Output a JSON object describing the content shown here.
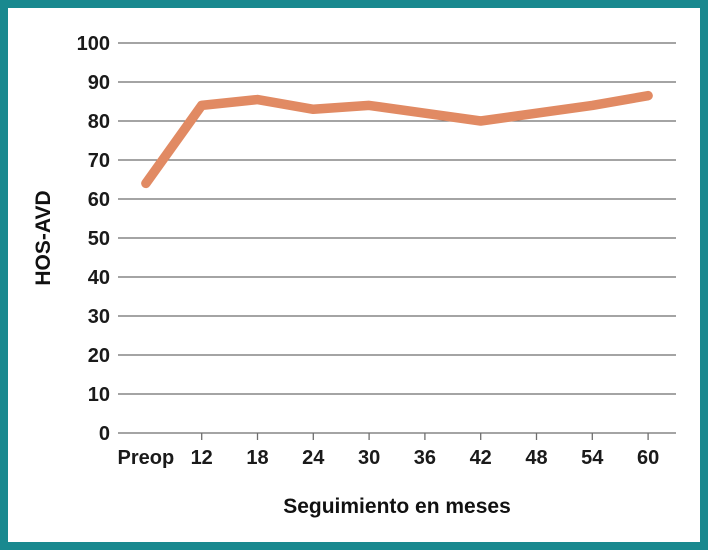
{
  "figure": {
    "border_color": "#19898F",
    "background_color": "#FFFFFF"
  },
  "chart_data": {
    "type": "line",
    "title": "",
    "xlabel": "Seguimiento en meses",
    "ylabel": "HOS-AVD",
    "categories": [
      "Preop",
      "12",
      "18",
      "24",
      "30",
      "36",
      "42",
      "48",
      "54",
      "60"
    ],
    "series": [
      {
        "name": "HOS-AVD",
        "color": "#E18A63",
        "values": [
          64,
          84,
          85.5,
          83,
          84,
          82,
          80,
          82,
          84,
          86.5
        ]
      }
    ],
    "ylim": [
      0,
      100
    ],
    "yticks": [
      0,
      10,
      20,
      30,
      40,
      50,
      60,
      70,
      80,
      90,
      100
    ],
    "grid": "horizontal",
    "gridline_color": "#6E6E6E",
    "text_color": "#1A1A1A",
    "legend": "none",
    "x_ticks_without_mark": [
      "Preop"
    ]
  }
}
